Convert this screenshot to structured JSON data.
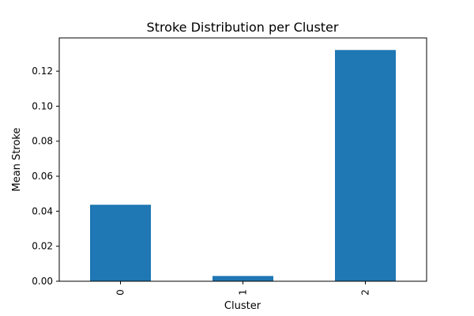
{
  "chart_data": {
    "type": "bar",
    "title": "Stroke Distribution per Cluster",
    "xlabel": "Cluster",
    "ylabel": "Mean Stroke",
    "categories": [
      "0",
      "1",
      "2"
    ],
    "values": [
      0.0437,
      0.003,
      0.1321
    ],
    "ylim": [
      0,
      0.139
    ],
    "yticks": [
      0.0,
      0.02,
      0.04,
      0.06,
      0.08,
      0.1,
      0.12
    ],
    "ytick_labels": [
      "0.00",
      "0.02",
      "0.04",
      "0.06",
      "0.08",
      "0.10",
      "0.12"
    ],
    "bar_color": "#1f77b4",
    "grid": false,
    "legend": "none"
  }
}
